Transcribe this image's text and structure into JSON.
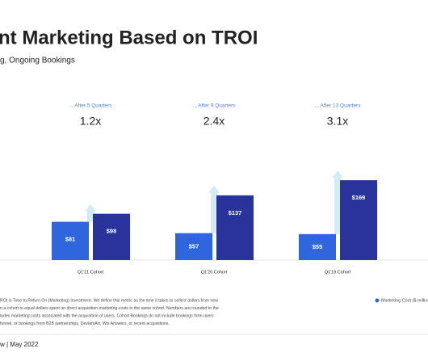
{
  "chart_data": {
    "type": "bar",
    "title": "nt Marketing Based on TROI",
    "subtitle": "g, Ongoing Bookings",
    "categories": [
      "Q1'21 Cohort",
      "Q1'20 Cohort",
      "Q1'19 Cohort"
    ],
    "annotations": [
      "... After 5 Quarters",
      "... After 9 Quarters",
      "... After 13 Quarters"
    ],
    "multiples": [
      "1.2x",
      "2.4x",
      "3.1x"
    ],
    "series": [
      {
        "name": "Marketing Cost ($ million",
        "color": "#2f66dd",
        "values": [
          81,
          57,
          55
        ],
        "value_labels": [
          "$81",
          "$57",
          "$55"
        ]
      },
      {
        "color": "#28339b",
        "values": [
          98,
          137,
          169
        ],
        "value_labels": [
          "$98",
          "$137",
          "$169"
        ]
      }
    ],
    "arrow_color": "#d3ebf7",
    "footnote": [
      "ROI is Time to Return On (Marketing) Investment. We define this metric as the time it takes to collect dollars from new",
      "n a cohort to equal dollars spent on direct acquisition marketing costs in the same cohort. Numbers are rounded to the",
      "ludes marketing costs associated with the acquisition of users. Cohort Bookings do not include bookings from users",
      "funnel, or bookings from B2B partnerships, DeviantArt, Wix Answers, or recent acquisitions."
    ],
    "footer": "w  |  May 2022"
  }
}
